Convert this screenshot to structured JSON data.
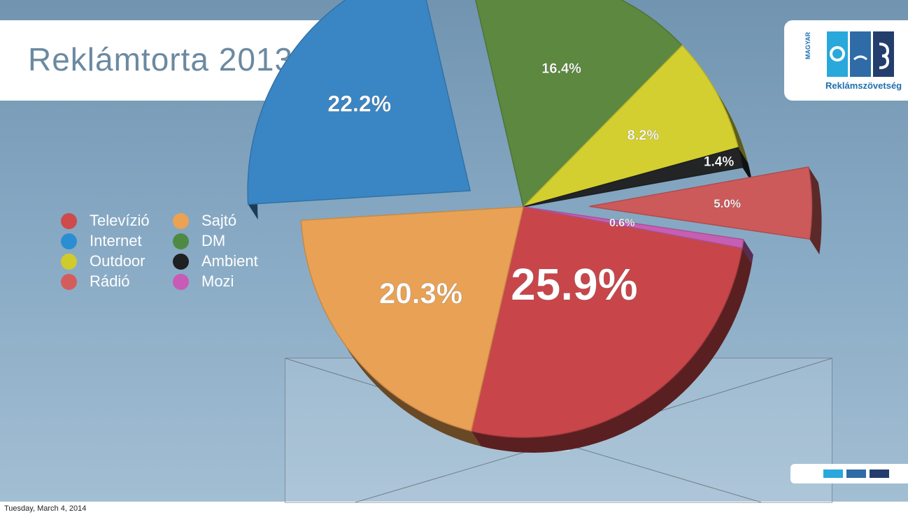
{
  "title": "Reklámtorta 2013",
  "logo": {
    "text": "Reklámszövetség",
    "side_text": "MAGYAR"
  },
  "date": "Tuesday, March 4, 2014",
  "stage_mark": "?",
  "chart_data": {
    "type": "pie",
    "title": "Reklámtorta 2013",
    "slices": [
      {
        "label": "Televízió",
        "value": 25.9,
        "value_label": "25.9%",
        "color": "#c8464a",
        "exploded": false
      },
      {
        "label": "Sajtó",
        "value": 20.3,
        "value_label": "20.3%",
        "color": "#e9a155",
        "exploded": false
      },
      {
        "label": "Internet",
        "value": 22.2,
        "value_label": "22.2%",
        "color": "#3a86c4",
        "exploded": true
      },
      {
        "label": "DM",
        "value": 16.4,
        "value_label": "16.4%",
        "color": "#5c8840",
        "exploded": false
      },
      {
        "label": "Outdoor",
        "value": 8.2,
        "value_label": "8.2%",
        "color": "#d4cf30",
        "exploded": false
      },
      {
        "label": "Ambient",
        "value": 1.4,
        "value_label": "1.4%",
        "color": "#222426",
        "exploded": false
      },
      {
        "label": "Rádió",
        "value": 5.0,
        "value_label": "5.0%",
        "color": "#cd5a5a",
        "exploded": true
      },
      {
        "label": "Mozi",
        "value": 0.6,
        "value_label": "0.6%",
        "color": "#c65fb2",
        "exploded": false
      }
    ],
    "legend": [
      {
        "label": "Televízió",
        "color": "#cf4a4a"
      },
      {
        "label": "Sajtó",
        "color": "#eba253"
      },
      {
        "label": "Internet",
        "color": "#2b8ed2"
      },
      {
        "label": "DM",
        "color": "#4f8a43"
      },
      {
        "label": "Outdoor",
        "color": "#cfcb2c"
      },
      {
        "label": "Ambient",
        "color": "#1f2022"
      },
      {
        "label": "Rádió",
        "color": "#d35d5d"
      },
      {
        "label": "Mozi",
        "color": "#c75bb5"
      }
    ],
    "legend_position": "left"
  },
  "footer_colors": [
    "#29a8dc",
    "#2f6ba7",
    "#233e6d"
  ]
}
